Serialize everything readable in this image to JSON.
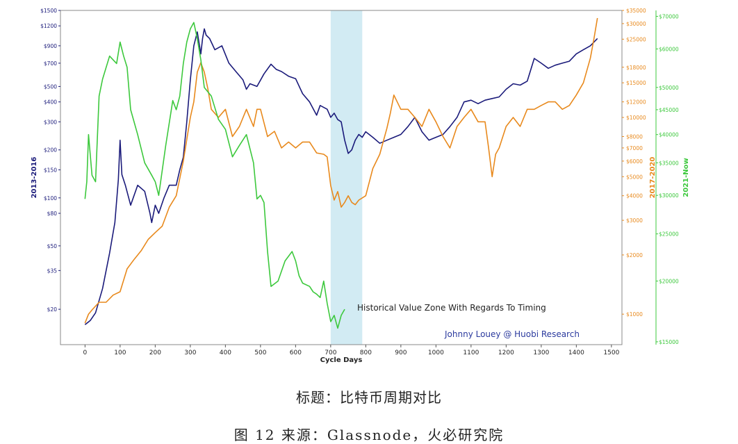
{
  "chart_data": {
    "type": "line",
    "title": "",
    "xlabel": "Cycle Days",
    "xlim": [
      -70,
      1530
    ],
    "x_ticks": [
      0,
      100,
      200,
      300,
      400,
      500,
      600,
      700,
      800,
      900,
      1000,
      1100,
      1200,
      1300,
      1400,
      1500
    ],
    "highlight_range": [
      700,
      790
    ],
    "annotation": "Historical Value Zone With Regards To Timing",
    "credit": "Johnny Louey @ Huobi Research",
    "axes": [
      {
        "id": "left",
        "label": "2013-2016",
        "color": "#1a1a7a",
        "scale": "log",
        "range": [
          12,
          1500
        ],
        "ticks": [
          20,
          35,
          50,
          80,
          100,
          150,
          200,
          300,
          400,
          500,
          700,
          900,
          1200,
          1500
        ],
        "tick_labels": [
          "$20",
          "$35",
          "$50",
          "$80",
          "$100",
          "$150",
          "$200",
          "$300",
          "$400",
          "$500",
          "$700",
          "$900",
          "$1200",
          "$1500"
        ]
      },
      {
        "id": "mid",
        "label": "2017-2020",
        "color": "#e8891c",
        "scale": "log",
        "range": [
          700,
          35000
        ],
        "ticks": [
          1000,
          2000,
          3000,
          4000,
          5000,
          6000,
          7000,
          8000,
          10000,
          12000,
          15000,
          18000,
          25000,
          30000,
          35000
        ],
        "tick_labels": [
          "$1000",
          "$2000",
          "$3000",
          "$4000",
          "$5000",
          "$6000",
          "$7000",
          "$8000",
          "$10000",
          "$12000",
          "$15000",
          "$18000",
          "$25000",
          "$30000",
          "$35000"
        ]
      },
      {
        "id": "right",
        "label": "2021-Now",
        "color": "#3cc83c",
        "scale": "log",
        "range": [
          14800,
          72000
        ],
        "ticks": [
          15000,
          20000,
          25000,
          30000,
          35000,
          40000,
          45000,
          50000,
          60000,
          70000
        ],
        "tick_labels": [
          "$15000",
          "$20000",
          "$25000",
          "$30000",
          "$35000",
          "$40000",
          "$45000",
          "$50000",
          "$60000",
          "$70000"
        ]
      }
    ],
    "series": [
      {
        "name": "2013-2016",
        "axis": "left",
        "color": "#1a1a7a",
        "x": [
          0,
          15,
          30,
          50,
          70,
          85,
          95,
          100,
          105,
          115,
          130,
          150,
          170,
          185,
          190,
          200,
          210,
          225,
          240,
          260,
          270,
          280,
          290,
          300,
          310,
          320,
          330,
          335,
          340,
          345,
          355,
          370,
          390,
          410,
          430,
          450,
          460,
          470,
          490,
          510,
          530,
          545,
          560,
          580,
          600,
          620,
          640,
          660,
          670,
          690,
          700,
          710,
          720,
          730,
          740,
          750,
          760,
          770,
          780,
          790,
          800,
          820,
          840,
          860,
          880,
          900,
          920,
          940,
          960,
          980,
          1000,
          1020,
          1040,
          1060,
          1080,
          1100,
          1120,
          1140,
          1160,
          1180,
          1200,
          1220,
          1240,
          1260,
          1280,
          1300,
          1320,
          1340,
          1360,
          1380,
          1400,
          1420,
          1440,
          1460
        ],
        "y": [
          16,
          17,
          19,
          27,
          45,
          70,
          130,
          230,
          140,
          120,
          90,
          120,
          110,
          80,
          70,
          90,
          80,
          100,
          120,
          120,
          150,
          180,
          300,
          550,
          900,
          1100,
          800,
          1000,
          1150,
          1050,
          1000,
          850,
          900,
          700,
          620,
          550,
          480,
          520,
          500,
          600,
          690,
          640,
          620,
          580,
          560,
          450,
          400,
          330,
          380,
          360,
          320,
          340,
          310,
          300,
          230,
          190,
          200,
          230,
          250,
          240,
          260,
          240,
          220,
          230,
          240,
          250,
          280,
          320,
          260,
          230,
          240,
          250,
          280,
          320,
          400,
          410,
          390,
          410,
          420,
          430,
          480,
          520,
          510,
          540,
          750,
          700,
          650,
          680,
          700,
          720,
          800,
          850,
          900,
          1000
        ]
      },
      {
        "name": "2017-2020",
        "axis": "mid",
        "color": "#e8891c",
        "x": [
          0,
          10,
          20,
          40,
          60,
          80,
          100,
          120,
          140,
          160,
          180,
          200,
          220,
          240,
          260,
          280,
          300,
          310,
          320,
          330,
          340,
          350,
          360,
          380,
          400,
          420,
          440,
          460,
          480,
          490,
          500,
          520,
          540,
          560,
          580,
          600,
          620,
          640,
          660,
          680,
          690,
          700,
          710,
          720,
          730,
          740,
          750,
          760,
          770,
          780,
          800,
          820,
          840,
          860,
          870,
          880,
          900,
          920,
          940,
          960,
          980,
          1000,
          1020,
          1040,
          1060,
          1080,
          1100,
          1120,
          1140,
          1150,
          1160,
          1170,
          1180,
          1200,
          1220,
          1240,
          1260,
          1280,
          1300,
          1320,
          1340,
          1360,
          1380,
          1400,
          1420,
          1440,
          1450,
          1460
        ],
        "y": [
          900,
          1000,
          1050,
          1150,
          1150,
          1250,
          1300,
          1700,
          1900,
          2100,
          2400,
          2600,
          2800,
          3500,
          4000,
          6000,
          10000,
          12000,
          17000,
          19000,
          17000,
          14000,
          11000,
          10000,
          11000,
          8000,
          9000,
          11000,
          9000,
          11000,
          11000,
          8000,
          8500,
          7000,
          7500,
          7000,
          7500,
          7500,
          6600,
          6500,
          6300,
          4500,
          3800,
          4200,
          3500,
          3700,
          4000,
          3700,
          3600,
          3800,
          4000,
          5500,
          6500,
          8800,
          10500,
          13000,
          11000,
          11000,
          10000,
          9000,
          11000,
          9500,
          8000,
          7000,
          9000,
          10000,
          11000,
          9500,
          9500,
          7000,
          5000,
          6500,
          7000,
          9000,
          10000,
          9000,
          11000,
          11000,
          11500,
          12000,
          12000,
          11000,
          11500,
          13000,
          15000,
          20000,
          25000,
          32000
        ]
      },
      {
        "name": "2021-Now",
        "axis": "right",
        "color": "#3cc83c",
        "x": [
          0,
          5,
          10,
          20,
          30,
          40,
          50,
          70,
          90,
          100,
          110,
          120,
          130,
          150,
          170,
          190,
          200,
          210,
          230,
          250,
          260,
          270,
          280,
          290,
          300,
          310,
          320,
          330,
          340,
          360,
          380,
          400,
          420,
          440,
          460,
          480,
          490,
          500,
          510,
          520,
          530,
          550,
          570,
          590,
          600,
          610,
          620,
          640,
          650,
          660,
          670,
          680,
          690,
          700,
          710,
          720,
          730,
          740
        ],
        "y": [
          29500,
          32000,
          40000,
          33000,
          32000,
          48000,
          52000,
          58000,
          56000,
          62000,
          58000,
          55000,
          45000,
          40000,
          35000,
          33000,
          32000,
          30000,
          38000,
          47000,
          45000,
          48000,
          56000,
          62000,
          66000,
          68000,
          63000,
          57000,
          50000,
          48000,
          43000,
          41000,
          36000,
          38000,
          40000,
          35000,
          29500,
          30000,
          29000,
          23000,
          19500,
          20000,
          22000,
          23000,
          22000,
          20500,
          19800,
          19500,
          19000,
          18800,
          18500,
          20000,
          18000,
          16500,
          17000,
          16000,
          17000,
          17500
        ]
      }
    ]
  },
  "captions": {
    "title": "标题：比特币周期对比",
    "figure": "图 12  来源：Glassnode，火必研究院"
  }
}
